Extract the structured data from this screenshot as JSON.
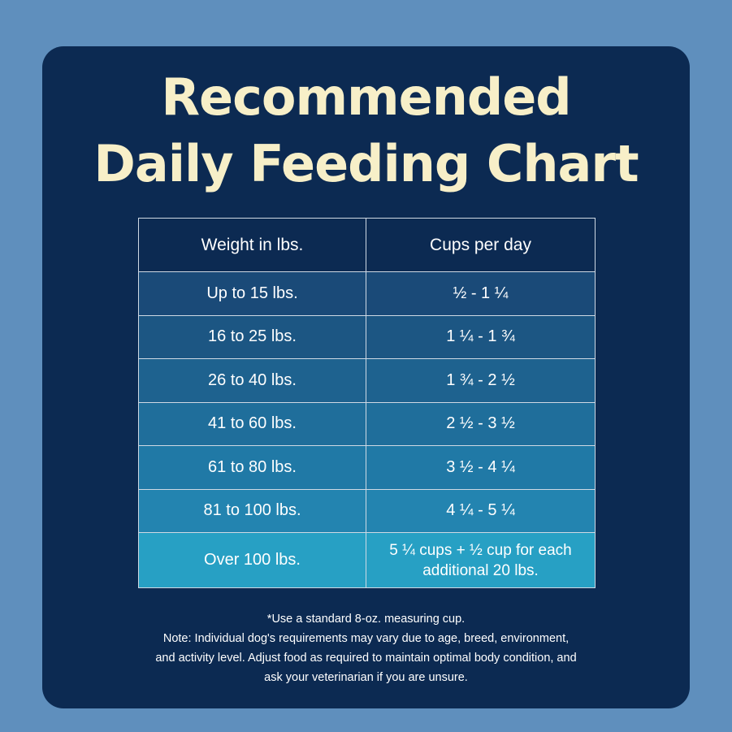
{
  "title": {
    "line1": "Recommended",
    "line2": "Daily Feeding Chart"
  },
  "colors": {
    "page_background": "#5f8fbd",
    "card_background": "#0c2a52",
    "title_color": "#f7efc8",
    "row_colors": [
      "#1a4a78",
      "#1c5683",
      "#1e628f",
      "#1f6e9b",
      "#2079a6",
      "#2384b0",
      "#27a0c4"
    ]
  },
  "table": {
    "headers": [
      "Weight in lbs.",
      "Cups per day"
    ],
    "rows": [
      {
        "weight": "Up to 15 lbs.",
        "cups": "½ - 1 ¼"
      },
      {
        "weight": "16 to 25 lbs.",
        "cups": "1 ¼ - 1 ¾"
      },
      {
        "weight": "26 to 40 lbs.",
        "cups": "1 ¾ - 2 ½"
      },
      {
        "weight": "41 to 60 lbs.",
        "cups": "2 ½ - 3 ½"
      },
      {
        "weight": "61 to 80 lbs.",
        "cups": "3 ½ - 4 ¼"
      },
      {
        "weight": "81 to 100 lbs.",
        "cups": "4 ¼ - 5 ¼"
      },
      {
        "weight": "Over 100 lbs.",
        "cups": "5 ¼ cups  + ½ cup for each additional 20 lbs."
      }
    ]
  },
  "notes": [
    "*Use a standard 8-oz. measuring cup.",
    "Note: Individual dog's requirements may vary due to age, breed, environment,",
    "and activity level. Adjust food as required to maintain optimal body condition, and",
    "ask your veterinarian if you are unsure."
  ]
}
